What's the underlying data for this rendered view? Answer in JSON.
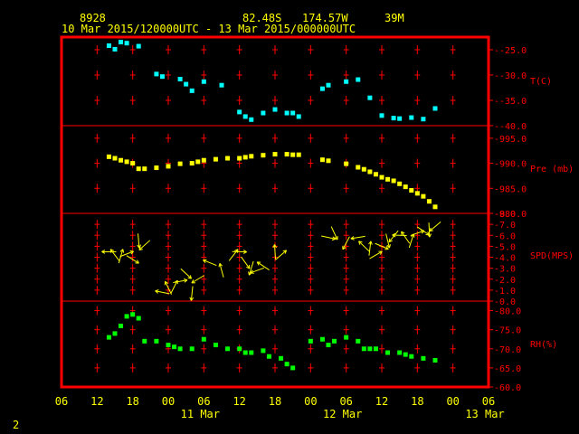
{
  "header": {
    "station_id": "8928",
    "lat": "82.48S",
    "lon": "174.57W",
    "elev": "39M",
    "period": "10 Mar 2015/120000UTC - 13 Mar 2015/000000UTC"
  },
  "footer": {
    "page_number": "2"
  },
  "colors": {
    "frame": "#ff0000",
    "label": "#ffff00",
    "axis_text": "#ff0000",
    "temp": "#00ffff",
    "pres": "#ffff00",
    "wind": "#ffff00",
    "rh": "#00ff00"
  },
  "chart_data": [
    {
      "type": "scatter",
      "name": "T(C)",
      "ylabel": "T(C)",
      "yticks": [
        "-25.0",
        "-30.0",
        "-35.0",
        "-40.0"
      ],
      "ylim": [
        -40,
        -22.5
      ],
      "x_hours": [
        14,
        15,
        16,
        17,
        19,
        22,
        23,
        26,
        27,
        28,
        30,
        33,
        36,
        37,
        38,
        40,
        42,
        44,
        45,
        46,
        50,
        51,
        54,
        56,
        58,
        60,
        62,
        63,
        65,
        67,
        69
      ],
      "values": [
        -24.2,
        -24.9,
        -23.5,
        -23.7,
        -24.3,
        -29.8,
        -30.3,
        -30.8,
        -31.8,
        -33.1,
        -31.3,
        -32.0,
        -37.3,
        -38.2,
        -38.8,
        -37.5,
        -36.8,
        -37.5,
        -37.5,
        -38.2,
        -32.7,
        -32.0,
        -31.3,
        -30.9,
        -34.5,
        -38.0,
        -38.5,
        -38.6,
        -38.4,
        -38.7,
        -36.6
      ]
    },
    {
      "type": "scatter",
      "name": "Pre (mb)",
      "ylabel": "Pre (mb)",
      "yticks": [
        "995.0",
        "990.0",
        "985.0",
        "980.0"
      ],
      "ylim": [
        980,
        997.5
      ],
      "x_hours": [
        14,
        15,
        16,
        17,
        18,
        19,
        20,
        22,
        24,
        26,
        28,
        29,
        30,
        32,
        34,
        36,
        37,
        38,
        40,
        42,
        44,
        45,
        46,
        50,
        51,
        54,
        56,
        57,
        58,
        59,
        60,
        61,
        62,
        63,
        64,
        65,
        66,
        67,
        68,
        69
      ],
      "values": [
        991.3,
        991.0,
        990.6,
        990.3,
        990.0,
        988.9,
        988.9,
        989.1,
        989.4,
        989.9,
        990.0,
        990.3,
        990.6,
        990.8,
        991.0,
        991.0,
        991.2,
        991.4,
        991.6,
        991.8,
        991.8,
        991.7,
        991.7,
        990.7,
        990.5,
        989.9,
        989.2,
        988.8,
        988.3,
        987.8,
        987.2,
        986.8,
        986.5,
        985.9,
        985.3,
        984.6,
        984.0,
        983.4,
        982.4,
        981.3
      ]
    },
    {
      "type": "scatter",
      "name": "SPD(MPS)",
      "ylabel": "SPD(MPS)",
      "yticks": [
        "8.0",
        "7.0",
        "6.0",
        "5.0",
        "4.0",
        "3.0",
        "2.0",
        "1.0",
        "0.0"
      ],
      "ylim": [
        0,
        8.0
      ],
      "x_hours": [
        14,
        15,
        16,
        17,
        18,
        19,
        20,
        23,
        24,
        25,
        26,
        27,
        28,
        29,
        31,
        33,
        35,
        36,
        37,
        38,
        39,
        40,
        42,
        43,
        51,
        52,
        54,
        56,
        57,
        58,
        59,
        60,
        61,
        62,
        63,
        64,
        65,
        66,
        67,
        68,
        69
      ],
      "values": [
        4.5,
        4.2,
        4.1,
        4.3,
        3.8,
        5.5,
        5.1,
        0.8,
        1.2,
        1.3,
        1.8,
        2.5,
        0.7,
        2.0,
        3.5,
        2.8,
        4.2,
        4.5,
        3.5,
        3.0,
        2.8,
        3.2,
        4.5,
        4.2,
        5.8,
        6.2,
        5.3,
        5.8,
        5.0,
        4.8,
        4.2,
        5.0,
        5.5,
        5.9,
        6.0,
        5.8,
        5.5,
        6.2,
        6.4,
        6.5,
        6.8
      ]
    },
    {
      "type": "scatter",
      "name": "RH(%)",
      "ylabel": "RH(%)",
      "yticks": [
        "80.0",
        "75.0",
        "70.0",
        "65.0",
        "60.0"
      ],
      "ylim": [
        60,
        82.5
      ],
      "x_hours": [
        14,
        15,
        16,
        17,
        18,
        19,
        20,
        22,
        24,
        25,
        26,
        28,
        30,
        32,
        34,
        36,
        37,
        38,
        40,
        41,
        43,
        44,
        45,
        48,
        50,
        51,
        52,
        54,
        56,
        57,
        58,
        59,
        61,
        63,
        64,
        65,
        67,
        69
      ],
      "values": [
        73.0,
        74.0,
        76.0,
        78.5,
        79.0,
        78.0,
        72.0,
        72.0,
        71.0,
        70.5,
        70.0,
        70.0,
        72.5,
        71.0,
        70.0,
        70.0,
        69.0,
        69.0,
        69.5,
        68.0,
        67.5,
        66.0,
        65.0,
        72.0,
        72.5,
        71.0,
        72.0,
        73.0,
        72.0,
        70.0,
        70.0,
        70.0,
        69.0,
        69.0,
        68.5,
        68.0,
        67.5,
        67.0
      ]
    }
  ],
  "x_axis": {
    "tick_labels": [
      "06",
      "12",
      "18",
      "00",
      "06",
      "12",
      "18",
      "00",
      "06",
      "12",
      "18",
      "00",
      "06"
    ],
    "day_labels": [
      "11 Mar",
      "12 Mar",
      "13 Mar"
    ]
  }
}
